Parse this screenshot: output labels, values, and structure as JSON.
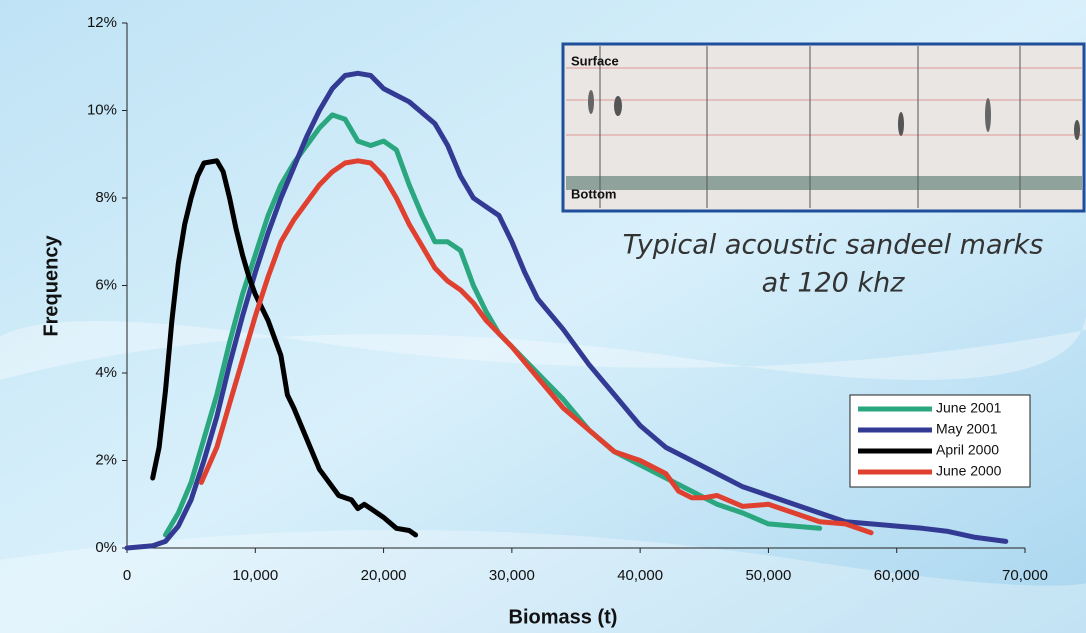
{
  "chart_data": {
    "type": "line",
    "x_label": "Biomass (t)",
    "y_label": "Frequency",
    "inset_labels": [
      "Surface",
      "Bottom"
    ],
    "annotation": [
      "Typical acoustic sandeel marks",
      "at 120 khz"
    ],
    "xlim": [
      0,
      70000
    ],
    "xticks": [
      0,
      {
        "value": 10000,
        "label": "10,000"
      },
      {
        "value": 20000,
        "label": "20,000"
      },
      {
        "value": 30000,
        "label": "30,000"
      },
      {
        "value": 40000,
        "label": "40,000"
      },
      {
        "value": 50000,
        "label": "50,000"
      },
      {
        "value": 60000,
        "label": "60,000"
      },
      {
        "value": 70000,
        "label": "70,000"
      }
    ],
    "ylim": [
      0,
      12
    ],
    "yticks": [
      {
        "value": 0,
        "label": "0%"
      },
      {
        "value": 2,
        "label": "2%"
      },
      {
        "value": 4,
        "label": "4%"
      },
      {
        "value": 6,
        "label": "6%"
      },
      {
        "value": 8,
        "label": "8%"
      },
      {
        "value": 10,
        "label": "10%"
      },
      {
        "value": 12,
        "label": "12%"
      }
    ],
    "legend": "lower right",
    "series": [
      {
        "name": "June 2001",
        "color": "#2aa77f",
        "x": [
          3000,
          4000,
          5000,
          6000,
          7000,
          8000,
          9000,
          10000,
          11000,
          12000,
          13000,
          14000,
          15000,
          16000,
          17000,
          18000,
          19000,
          20000,
          21000,
          22000,
          23000,
          24000,
          25000,
          26000,
          27000,
          28000,
          29000,
          30000,
          32000,
          34000,
          36000,
          38000,
          40000,
          42000,
          44000,
          46000,
          48000,
          50000,
          52000,
          54000
        ],
        "values": [
          0.3,
          0.8,
          1.5,
          2.5,
          3.5,
          4.7,
          5.8,
          6.7,
          7.6,
          8.3,
          8.8,
          9.2,
          9.6,
          9.9,
          9.8,
          9.3,
          9.2,
          9.3,
          9.1,
          8.3,
          7.6,
          7.0,
          7.0,
          6.8,
          6.0,
          5.4,
          4.9,
          4.6,
          4.0,
          3.4,
          2.7,
          2.2,
          1.9,
          1.6,
          1.3,
          1.0,
          0.8,
          0.55,
          0.5,
          0.45
        ]
      },
      {
        "name": "May 2001",
        "color": "#333a94",
        "x": [
          0,
          2000,
          3000,
          4000,
          5000,
          6000,
          7000,
          8000,
          9000,
          10000,
          11000,
          12000,
          13000,
          14000,
          15000,
          16000,
          17000,
          18000,
          19000,
          20000,
          22000,
          24000,
          25000,
          26000,
          27000,
          28000,
          29000,
          30000,
          31000,
          32000,
          34000,
          36000,
          38000,
          40000,
          42000,
          44000,
          46000,
          48000,
          50000,
          52000,
          54000,
          56000,
          58000,
          60000,
          62000,
          64000,
          66000,
          68500
        ],
        "values": [
          0,
          0.05,
          0.15,
          0.5,
          1.1,
          2.0,
          3.0,
          4.2,
          5.3,
          6.3,
          7.2,
          8.0,
          8.7,
          9.4,
          10.0,
          10.5,
          10.8,
          10.85,
          10.8,
          10.5,
          10.2,
          9.7,
          9.2,
          8.5,
          8.0,
          7.8,
          7.6,
          7.0,
          6.3,
          5.7,
          5.0,
          4.2,
          3.5,
          2.8,
          2.3,
          2.0,
          1.7,
          1.4,
          1.2,
          1.0,
          0.8,
          0.6,
          0.55,
          0.5,
          0.45,
          0.38,
          0.25,
          0.15
        ]
      },
      {
        "name": "April 2000",
        "color": "#000000",
        "x": [
          2000,
          2500,
          3000,
          3500,
          4000,
          4500,
          5000,
          5500,
          6000,
          7000,
          7500,
          8000,
          8500,
          9000,
          9500,
          10000,
          11000,
          12000,
          12500,
          13000,
          14000,
          15000,
          16000,
          16500,
          17000,
          17500,
          18000,
          18500,
          19000,
          20000,
          21000,
          22000,
          22500
        ],
        "values": [
          1.6,
          2.3,
          3.6,
          5.2,
          6.5,
          7.4,
          8.0,
          8.5,
          8.8,
          8.85,
          8.6,
          8.0,
          7.3,
          6.7,
          6.2,
          5.8,
          5.2,
          4.4,
          3.5,
          3.2,
          2.5,
          1.8,
          1.4,
          1.2,
          1.15,
          1.1,
          0.9,
          1.0,
          0.9,
          0.7,
          0.45,
          0.4,
          0.3
        ]
      },
      {
        "name": "June 2000",
        "color": "#e0402f",
        "x": [
          5800,
          7000,
          8000,
          9000,
          10000,
          11000,
          12000,
          13000,
          14000,
          15000,
          16000,
          17000,
          18000,
          19000,
          20000,
          21000,
          22000,
          23000,
          24000,
          25000,
          26000,
          27000,
          28000,
          30000,
          32000,
          34000,
          36000,
          38000,
          40000,
          42000,
          43000,
          44000,
          45000,
          46000,
          48000,
          50000,
          52000,
          54000,
          56000,
          58000
        ],
        "values": [
          1.5,
          2.3,
          3.3,
          4.3,
          5.3,
          6.2,
          7.0,
          7.5,
          7.9,
          8.3,
          8.6,
          8.8,
          8.85,
          8.8,
          8.5,
          8.0,
          7.4,
          6.9,
          6.4,
          6.1,
          5.9,
          5.6,
          5.2,
          4.6,
          3.9,
          3.2,
          2.7,
          2.2,
          2.0,
          1.7,
          1.3,
          1.15,
          1.15,
          1.2,
          0.95,
          1.0,
          0.8,
          0.6,
          0.55,
          0.35
        ]
      }
    ]
  }
}
